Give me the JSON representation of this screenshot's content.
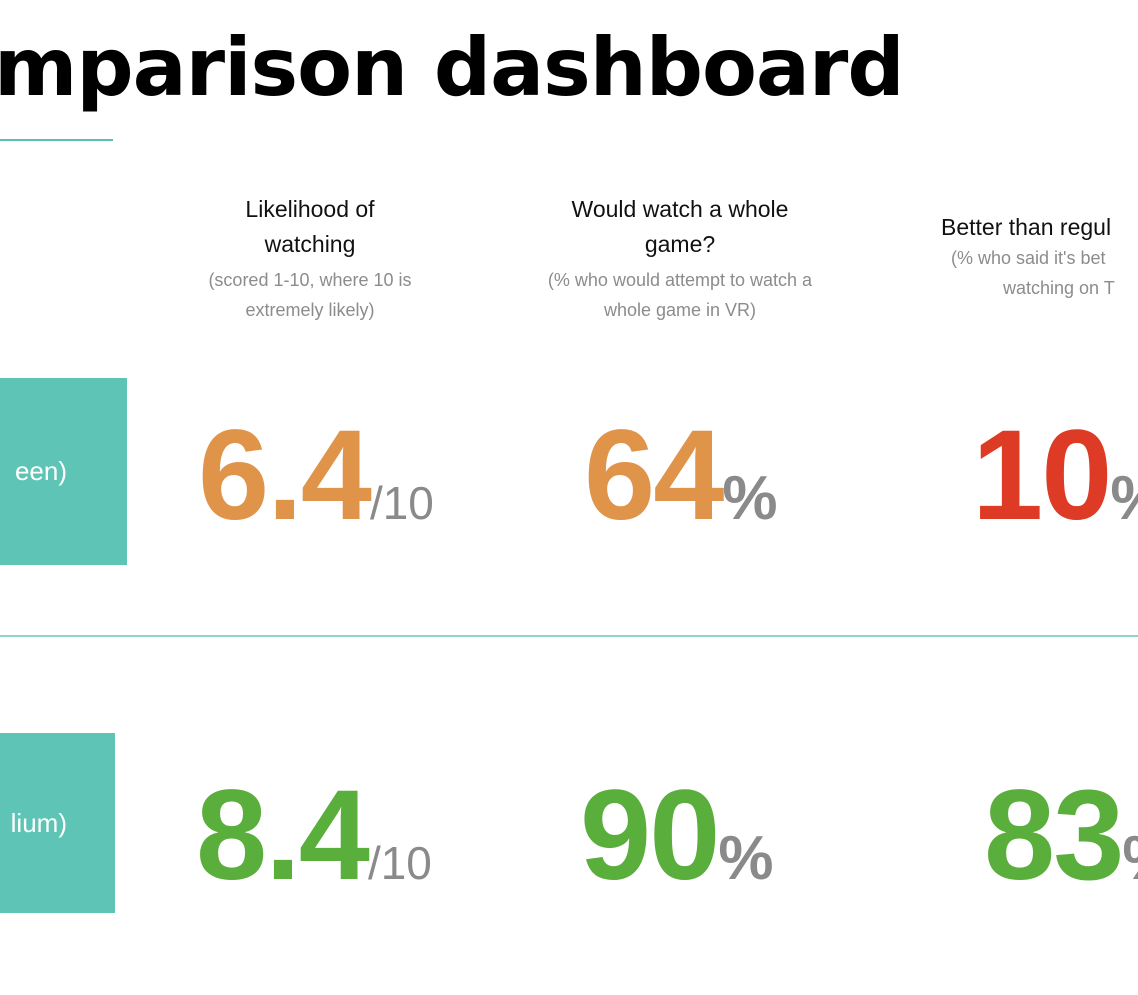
{
  "header": {
    "title": "mparison dashboard"
  },
  "columns": [
    {
      "heading_line1": "Likelihood of",
      "heading_line2": "watching",
      "sub_line1": "(scored 1-10, where 10 is",
      "sub_line2": "extremely likely)"
    },
    {
      "heading_line1": "Would watch a whole",
      "heading_line2": "game?",
      "sub_line1": "(% who would attempt to watch a",
      "sub_line2": "whole game in VR)"
    },
    {
      "heading_line1": "Better than regul",
      "sub_line1": "(% who said it's bet",
      "sub_line2": "watching on T"
    }
  ],
  "rows": [
    {
      "label": "een)",
      "metrics": [
        {
          "value": "6.4",
          "unit": "/10",
          "color": "#e0944a"
        },
        {
          "value": "64",
          "unit": "%",
          "color": "#e0944a"
        },
        {
          "value": "10",
          "unit": "%",
          "color": "#dd3b26"
        }
      ]
    },
    {
      "label": "lium)",
      "metrics": [
        {
          "value": "8.4",
          "unit": "/10",
          "color": "#5aae3c"
        },
        {
          "value": "90",
          "unit": "%",
          "color": "#5aae3c"
        },
        {
          "value": "83",
          "unit": "%",
          "color": "#5aae3c"
        }
      ]
    }
  ],
  "colors": {
    "accent_teal": "#5ec4b6",
    "unit_gray": "#8a8a8a",
    "subtext_gray": "#8c8c8c"
  }
}
